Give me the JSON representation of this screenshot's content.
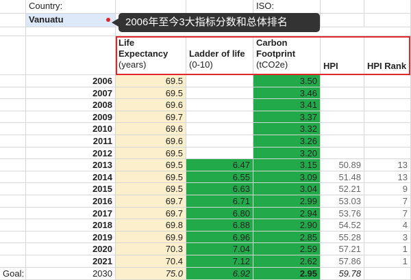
{
  "top": {
    "country_label": "Country:",
    "country_value": "Vanuatu",
    "iso_label": "ISO:"
  },
  "tooltip": "2006年至今3大指标分数和总体排名",
  "headers": {
    "life": {
      "title1": "Life",
      "title2": "Expectancy",
      "unit": "(years)"
    },
    "ladder": {
      "title1": "Ladder of life",
      "unit": "(0-10)"
    },
    "carbon": {
      "title1": "Carbon",
      "title2": "Footprint",
      "unit": "(tCO2e)"
    },
    "hpi": "HPI",
    "rank": "HPI Rank"
  },
  "rows": [
    {
      "year": "2006",
      "le": "69.5",
      "ladder": "",
      "carbon": "3.50",
      "hpi": "",
      "rank": ""
    },
    {
      "year": "2007",
      "le": "69.5",
      "ladder": "",
      "carbon": "3.46",
      "hpi": "",
      "rank": ""
    },
    {
      "year": "2008",
      "le": "69.6",
      "ladder": "",
      "carbon": "3.41",
      "hpi": "",
      "rank": ""
    },
    {
      "year": "2009",
      "le": "69.7",
      "ladder": "",
      "carbon": "3.37",
      "hpi": "",
      "rank": ""
    },
    {
      "year": "2010",
      "le": "69.6",
      "ladder": "",
      "carbon": "3.32",
      "hpi": "",
      "rank": ""
    },
    {
      "year": "2011",
      "le": "69.6",
      "ladder": "",
      "carbon": "3.26",
      "hpi": "",
      "rank": ""
    },
    {
      "year": "2012",
      "le": "69.5",
      "ladder": "",
      "carbon": "3.20",
      "hpi": "",
      "rank": ""
    },
    {
      "year": "2013",
      "le": "69.5",
      "ladder": "6.47",
      "carbon": "3.15",
      "hpi": "50.89",
      "rank": "13"
    },
    {
      "year": "2014",
      "le": "69.5",
      "ladder": "6.55",
      "carbon": "3.09",
      "hpi": "51.48",
      "rank": "13"
    },
    {
      "year": "2015",
      "le": "69.5",
      "ladder": "6.63",
      "carbon": "3.04",
      "hpi": "52.21",
      "rank": "9"
    },
    {
      "year": "2016",
      "le": "69.7",
      "ladder": "6.71",
      "carbon": "2.99",
      "hpi": "53.03",
      "rank": "7"
    },
    {
      "year": "2017",
      "le": "69.7",
      "ladder": "6.80",
      "carbon": "2.94",
      "hpi": "53.76",
      "rank": "7"
    },
    {
      "year": "2018",
      "le": "69.8",
      "ladder": "6.88",
      "carbon": "2.90",
      "hpi": "54.52",
      "rank": "4"
    },
    {
      "year": "2019",
      "le": "69.9",
      "ladder": "6.96",
      "carbon": "2.85",
      "hpi": "55.28",
      "rank": "3"
    },
    {
      "year": "2020",
      "le": "70.3",
      "ladder": "7.04",
      "carbon": "2.59",
      "hpi": "57.21",
      "rank": "1"
    },
    {
      "year": "2021",
      "le": "70.4",
      "ladder": "7.12",
      "carbon": "2.62",
      "hpi": "57.86",
      "rank": "1"
    }
  ],
  "goal": {
    "label": "Goal:",
    "year": "2030",
    "le": "75.0",
    "ladder": "6.92",
    "carbon": "2.95",
    "hpi": "59.78"
  },
  "colors": {
    "life_bg": "#fcefcc",
    "green": "#22a94a",
    "highlight": "#e0262b",
    "tooltip_bg": "#333333"
  }
}
